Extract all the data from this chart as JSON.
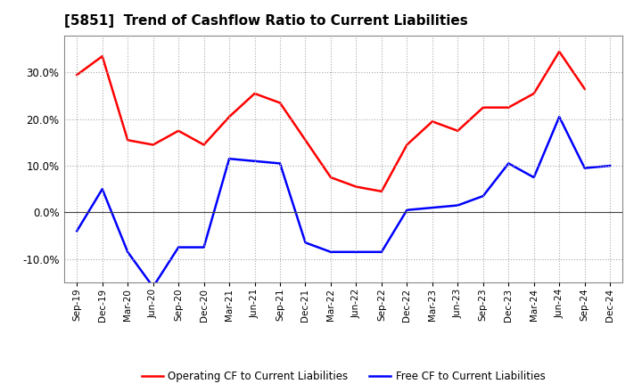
{
  "title": "[5851]  Trend of Cashflow Ratio to Current Liabilities",
  "x_labels": [
    "Sep-19",
    "Dec-19",
    "Mar-20",
    "Jun-20",
    "Sep-20",
    "Dec-20",
    "Mar-21",
    "Jun-21",
    "Sep-21",
    "Dec-21",
    "Mar-22",
    "Jun-22",
    "Sep-22",
    "Dec-22",
    "Mar-23",
    "Jun-23",
    "Sep-23",
    "Dec-23",
    "Mar-24",
    "Jun-24",
    "Sep-24",
    "Dec-24"
  ],
  "operating_cf": [
    0.295,
    0.335,
    0.155,
    0.145,
    0.175,
    0.145,
    0.205,
    0.255,
    0.235,
    0.155,
    0.075,
    0.055,
    0.045,
    0.145,
    0.195,
    0.175,
    0.225,
    0.225,
    0.255,
    0.345,
    0.265,
    null
  ],
  "free_cf": [
    -0.04,
    0.05,
    -0.085,
    -0.16,
    -0.075,
    -0.075,
    0.115,
    0.11,
    0.105,
    -0.065,
    -0.085,
    -0.085,
    -0.085,
    0.005,
    0.01,
    0.015,
    0.035,
    0.105,
    0.075,
    0.205,
    0.095,
    0.1
  ],
  "ylim": [
    -0.15,
    0.38
  ],
  "yticks": [
    -0.1,
    0.0,
    0.1,
    0.2,
    0.3
  ],
  "operating_color": "#ff0000",
  "free_color": "#0000ff",
  "bg_color": "#ffffff",
  "plot_bg_color": "#ffffff",
  "grid_color": "#aaaaaa",
  "legend_operating": "Operating CF to Current Liabilities",
  "legend_free": "Free CF to Current Liabilities"
}
